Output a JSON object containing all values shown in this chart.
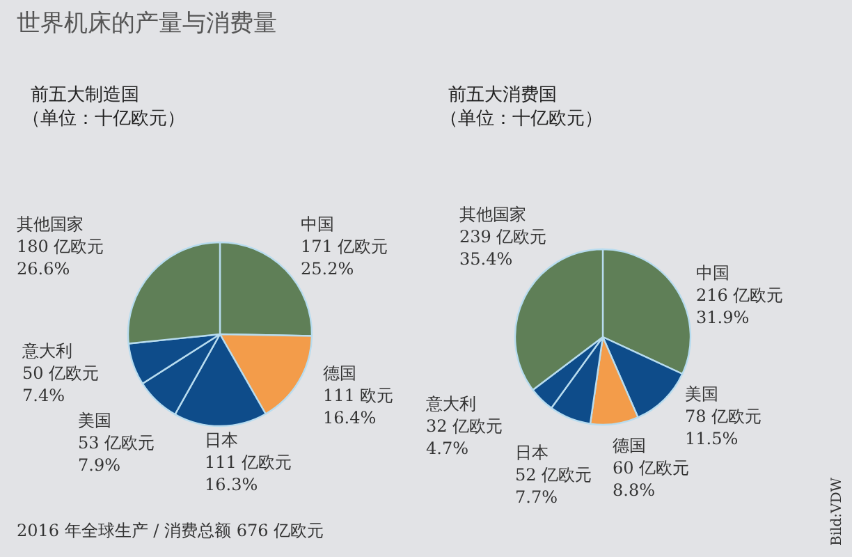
{
  "chart_data": [
    {
      "type": "pie",
      "title": "前五大制造国",
      "subtitle": "（单位：十亿欧元）",
      "categories": [
        "中国",
        "德国",
        "日本",
        "美国",
        "意大利",
        "其他国家"
      ],
      "values": [
        171,
        111,
        111,
        53,
        50,
        180
      ],
      "colors": [
        "#5f7f57",
        "#f39c4a",
        "#0e4c8a",
        "#0e4c8a",
        "#0e4c8a",
        "#5f7f57"
      ],
      "value_labels": [
        "171 亿欧元\n25.2%",
        "111 欧元\n16.4%",
        "111 亿欧元\n16.3%",
        "53 亿欧元\n7.9%",
        "50 亿欧元\n7.4%",
        "180 亿欧元\n26.6%"
      ],
      "annotations": [
        "世界机床的产量与消费量",
        "2016 年全球生产 / 消费总额 676 亿欧元"
      ]
    },
    {
      "type": "pie",
      "title": "前五大消费国",
      "subtitle": "（单位：十亿欧元）",
      "categories": [
        "中国",
        "美国",
        "德国",
        "日本",
        "意大利",
        "其他国家"
      ],
      "values": [
        216,
        78,
        60,
        52,
        32,
        239
      ],
      "colors": [
        "#5f7f57",
        "#0e4c8a",
        "#f39c4a",
        "#0e4c8a",
        "#0e4c8a",
        "#5f7f57"
      ],
      "value_labels": [
        "216 亿欧元\n31.9%",
        "78 亿欧元\n11.5%",
        "60 亿欧元\n8.8%",
        "52 亿欧元\n7.7%",
        "32 亿欧元\n4.7%",
        "239 亿欧元\n35.4%"
      ],
      "annotations": [
        "Bild:VDW"
      ]
    }
  ]
}
